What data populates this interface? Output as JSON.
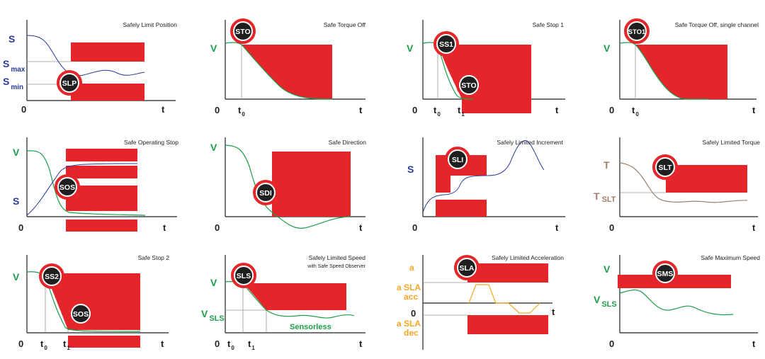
{
  "colors": {
    "red": "#e4262b",
    "green": "#1e9e4a",
    "blue": "#2a3a9a",
    "brown": "#a07f6c",
    "orange": "#f5a623",
    "dark": "#1f1f1f"
  },
  "panels": [
    {
      "title": "Safely Limit Position",
      "zero": "0",
      "t": "t",
      "labels": {
        "s": "S",
        "smax_main": "S",
        "smax_sub": "max",
        "smin_main": "S",
        "smin_sub": "min"
      },
      "badges": [
        "SLP"
      ]
    },
    {
      "title": "Safe Torque Off",
      "zero": "0",
      "t": "t",
      "labels": {
        "v": "V",
        "t0_main": "t",
        "t0_sub": "0"
      },
      "badges": [
        "STO"
      ]
    },
    {
      "title": "Safe Stop 1",
      "zero": "0",
      "t": "t",
      "labels": {
        "v": "V",
        "t0_main": "t",
        "t0_sub": "0",
        "t1_main": "t",
        "t1_sub": "1"
      },
      "badges": [
        "SS1",
        "STO"
      ]
    },
    {
      "title": "Safe Torque Off, single channel",
      "zero": "0",
      "t": "t",
      "labels": {
        "v": "V",
        "t0_main": "t",
        "t0_sub": "0"
      },
      "badges": [
        "STO1"
      ]
    },
    {
      "title": "Safe Operating Stop",
      "zero": "0",
      "t": "t",
      "labels": {
        "v": "V",
        "s": "S"
      },
      "badges": [
        "SOS"
      ]
    },
    {
      "title": "Safe Direction",
      "zero": "0",
      "t": "t",
      "labels": {
        "v": "V"
      },
      "badges": [
        "SDI"
      ]
    },
    {
      "title": "Safely Limited Increment",
      "zero": "0",
      "t": "t",
      "labels": {
        "s": "S"
      },
      "badges": [
        "SLI"
      ]
    },
    {
      "title": "Safely Limited Torque",
      "zero": "0",
      "t": "t",
      "labels": {
        "t_main": "T",
        "tslt_main": "T",
        "tslt_sub": "SLT"
      },
      "badges": [
        "SLT"
      ]
    },
    {
      "title": "Safe Stop 2",
      "zero": "0",
      "t": "t",
      "labels": {
        "v": "V",
        "t0_main": "t",
        "t0_sub": "0",
        "t1_main": "t",
        "t1_sub": "1"
      },
      "badges": [
        "SS2",
        "SOS"
      ]
    },
    {
      "title": "Safely Limited Speed",
      "subtitle": "with Safe Speed Observer",
      "zero": "0",
      "t": "t",
      "labels": {
        "v": "V",
        "vsls_main": "V",
        "vsls_sub": "SLS",
        "t0_main": "t",
        "t0_sub": "0",
        "t1_main": "t",
        "t1_sub": "1",
        "sensorless": "Sensorless"
      },
      "badges": [
        "SLS"
      ]
    },
    {
      "title": "Safely Limited Acceleration",
      "zero": "0",
      "t": "t",
      "labels": {
        "a": "a",
        "acc_1": "a SLA",
        "acc_2": "acc",
        "dec_1": "a SLA",
        "dec_2": "dec"
      },
      "badges": [
        "SLA"
      ]
    },
    {
      "title": "Safe Maximum Speed",
      "zero": "0",
      "t": "t",
      "labels": {
        "v": "V",
        "vsls_main": "V",
        "vsls_sub": "SLS"
      },
      "badges": [
        "SMS"
      ]
    }
  ]
}
